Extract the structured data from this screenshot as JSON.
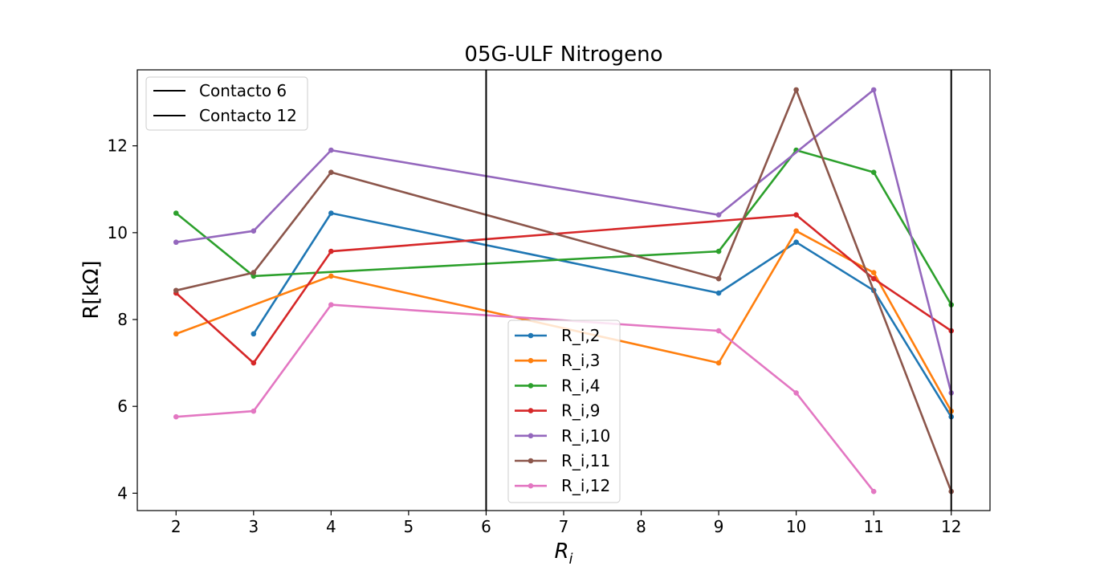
{
  "chart_data": {
    "type": "line",
    "title": "05G-ULF Nitrogeno",
    "xlabel": "R",
    "xlabel_subscript": "i",
    "ylabel": "R[kΩ]",
    "xlim": [
      1.5,
      12.5
    ],
    "ylim": [
      3.6,
      13.75
    ],
    "x_ticks": [
      2,
      3,
      4,
      5,
      6,
      7,
      8,
      9,
      10,
      11,
      12
    ],
    "y_ticks": [
      4,
      6,
      8,
      10,
      12
    ],
    "grid": false,
    "vertical_lines": [
      {
        "name": "Contacto 6",
        "x": 6,
        "color": "#000000"
      },
      {
        "name": "Contacto 12",
        "x": 12,
        "color": "#000000"
      }
    ],
    "series": [
      {
        "name": "R_i,2",
        "color": "#1f77b4",
        "x": [
          3,
          4,
          9,
          10,
          11,
          12
        ],
        "values": [
          7.67,
          10.45,
          8.61,
          9.78,
          8.67,
          5.76
        ]
      },
      {
        "name": "R_i,3",
        "color": "#ff7f0e",
        "x": [
          2,
          4,
          9,
          10,
          11,
          12
        ],
        "values": [
          7.67,
          9.0,
          7.0,
          10.04,
          9.08,
          5.89
        ]
      },
      {
        "name": "R_i,4",
        "color": "#2ca02c",
        "x": [
          2,
          3,
          9,
          10,
          11,
          12
        ],
        "values": [
          10.45,
          9.0,
          9.57,
          11.9,
          11.39,
          8.34
        ]
      },
      {
        "name": "R_i,9",
        "color": "#d62728",
        "x": [
          2,
          3,
          4,
          10,
          11,
          12
        ],
        "values": [
          8.61,
          7.0,
          9.57,
          10.41,
          8.94,
          7.74
        ]
      },
      {
        "name": "R_i,10",
        "color": "#9467bd",
        "x": [
          2,
          3,
          4,
          9,
          11,
          12
        ],
        "values": [
          9.78,
          10.04,
          11.9,
          10.41,
          13.29,
          6.31
        ]
      },
      {
        "name": "R_i,11",
        "color": "#8c564b",
        "x": [
          2,
          3,
          4,
          9,
          10,
          12
        ],
        "values": [
          8.67,
          9.08,
          11.39,
          8.94,
          13.29,
          4.04
        ]
      },
      {
        "name": "R_i,12",
        "color": "#e377c2",
        "x": [
          2,
          3,
          4,
          9,
          10,
          11
        ],
        "values": [
          5.76,
          5.89,
          8.34,
          7.74,
          6.31,
          4.04
        ]
      }
    ],
    "legends": [
      {
        "placement": "upper-left",
        "entries": [
          "Contacto 6",
          "Contacto 12"
        ]
      },
      {
        "placement": "lower-center",
        "entries": [
          "R_i,2",
          "R_i,3",
          "R_i,4",
          "R_i,9",
          "R_i,10",
          "R_i,11",
          "R_i,12"
        ]
      }
    ]
  }
}
